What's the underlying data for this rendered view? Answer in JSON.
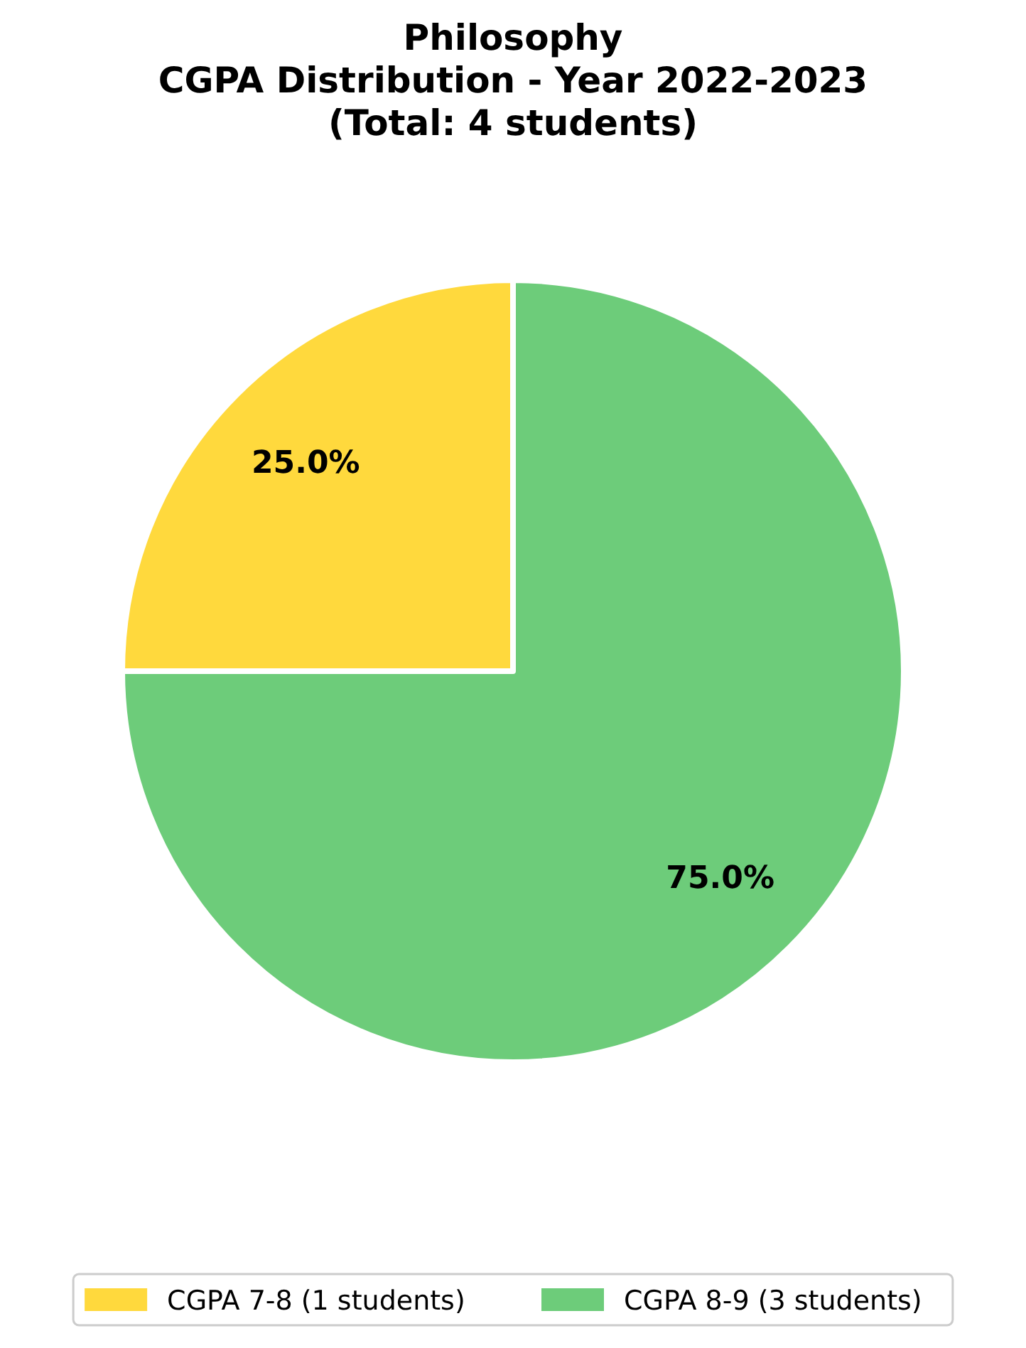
{
  "chart_data": {
    "type": "pie",
    "title": "Philosophy\nCGPA Distribution - Year 2022-2023\n(Total: 4 students)",
    "categories": [
      "CGPA 7-8 (1 students)",
      "CGPA 8-9 (3 students)"
    ],
    "values": [
      25,
      75
    ],
    "colors": [
      "#ffd93d",
      "#6dcc7a"
    ],
    "value_labels": [
      "25.0%",
      "75.0%"
    ],
    "legend": "bottom"
  }
}
